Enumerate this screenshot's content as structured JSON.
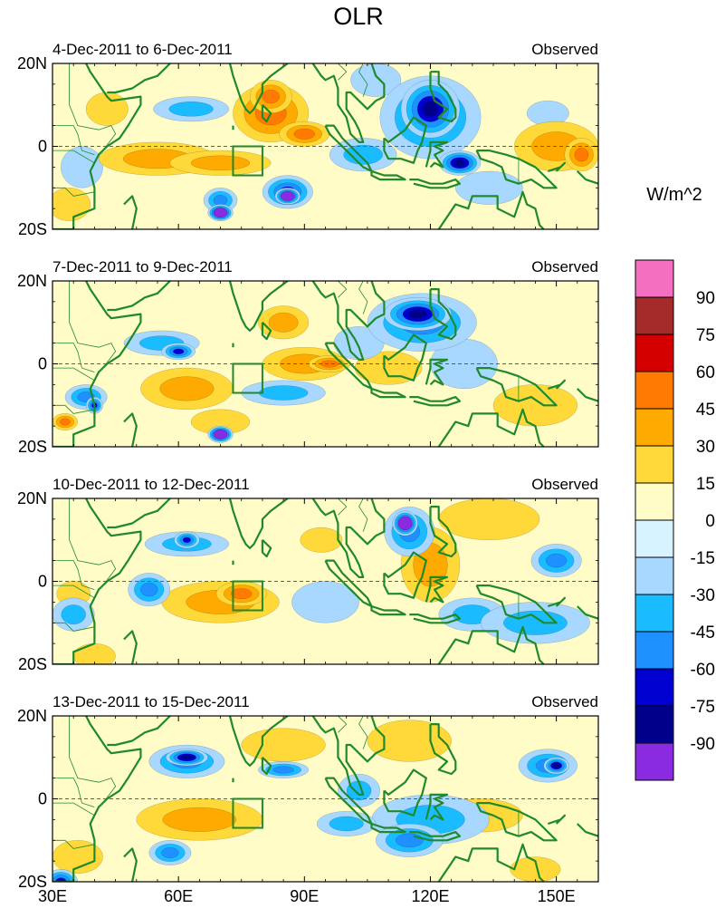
{
  "chart_data": {
    "type": "heatmap",
    "title": "OLR",
    "units_label": "W/m^2",
    "x_ticks": [
      "30E",
      "60E",
      "90E",
      "120E",
      "150E"
    ],
    "x_tick_values": [
      30,
      60,
      90,
      120,
      150
    ],
    "y_ticks": [
      "20N",
      "0",
      "20S"
    ],
    "y_tick_values": [
      20,
      0,
      -20
    ],
    "lon_range": [
      30,
      160
    ],
    "lat_range": [
      -20,
      20
    ],
    "box_region": {
      "lon": [
        73,
        80
      ],
      "lat": [
        -7,
        0
      ]
    },
    "colorbar": {
      "labels": [
        "90",
        "75",
        "60",
        "45",
        "30",
        "15",
        "0",
        "-15",
        "-30",
        "-45",
        "-60",
        "-75",
        "-90"
      ],
      "colors": [
        "#f46fc0",
        "#a52a2a",
        "#d40000",
        "#ff7a00",
        "#ffaa00",
        "#ffd93a",
        "#fffcc8",
        "#d6f3ff",
        "#a8d8ff",
        "#1bbcff",
        "#1e90ff",
        "#0000d0",
        "#00008b",
        "#8a2be2"
      ]
    },
    "panels": [
      {
        "period": "4-Dec-2011 to 6-Dec-2011",
        "label": "Observed",
        "features": [
          {
            "lon": 55,
            "lat": -3,
            "rx": 14,
            "ry": 4,
            "v": 30
          },
          {
            "lon": 70,
            "lat": -4,
            "rx": 12,
            "ry": 3,
            "v": 40
          },
          {
            "lon": 82,
            "lat": 8,
            "rx": 9,
            "ry": 7,
            "v": 45
          },
          {
            "lon": 82,
            "lat": 12,
            "rx": 5,
            "ry": 4,
            "v": 52
          },
          {
            "lon": 90,
            "lat": 3,
            "rx": 6,
            "ry": 3,
            "v": 45
          },
          {
            "lon": 150,
            "lat": 0,
            "rx": 10,
            "ry": 6,
            "v": 35
          },
          {
            "lon": 156,
            "lat": -2,
            "rx": 4,
            "ry": 4,
            "v": 50
          },
          {
            "lon": 43,
            "lat": 9,
            "rx": 5,
            "ry": 4,
            "v": 25
          },
          {
            "lon": 34,
            "lat": -14,
            "rx": 5,
            "ry": 4,
            "v": 20
          },
          {
            "lon": 63,
            "lat": 9,
            "rx": 9,
            "ry": 3,
            "v": -30
          },
          {
            "lon": 70,
            "lat": -13,
            "rx": 4,
            "ry": 3,
            "v": -45
          },
          {
            "lon": 70,
            "lat": -16,
            "rx": 3,
            "ry": 2,
            "v": -92
          },
          {
            "lon": 86,
            "lat": -11,
            "rx": 6,
            "ry": 4,
            "v": -60
          },
          {
            "lon": 86,
            "lat": -12,
            "rx": 3,
            "ry": 2,
            "v": -92
          },
          {
            "lon": 120,
            "lat": 7,
            "rx": 12,
            "ry": 10,
            "v": -55
          },
          {
            "lon": 120,
            "lat": 9,
            "rx": 7,
            "ry": 7,
            "v": -78
          },
          {
            "lon": 127,
            "lat": -4,
            "rx": 5,
            "ry": 3,
            "v": -80
          },
          {
            "lon": 104,
            "lat": -2,
            "rx": 8,
            "ry": 4,
            "v": -32
          },
          {
            "lon": 134,
            "lat": -10,
            "rx": 8,
            "ry": 4,
            "v": -25
          },
          {
            "lon": 148,
            "lat": 8,
            "rx": 5,
            "ry": 3,
            "v": -28
          },
          {
            "lon": 107,
            "lat": 16,
            "rx": 6,
            "ry": 4,
            "v": -20
          },
          {
            "lon": 37,
            "lat": -5,
            "rx": 5,
            "ry": 5,
            "v": -25
          }
        ]
      },
      {
        "period": "7-Dec-2011 to 9-Dec-2011",
        "label": "Observed",
        "features": [
          {
            "lon": 62,
            "lat": -6,
            "rx": 11,
            "ry": 5,
            "v": 30
          },
          {
            "lon": 85,
            "lat": 10,
            "rx": 6,
            "ry": 4,
            "v": 30
          },
          {
            "lon": 90,
            "lat": 0,
            "rx": 10,
            "ry": 4,
            "v": 40
          },
          {
            "lon": 96,
            "lat": 0,
            "rx": 5,
            "ry": 2,
            "v": 50
          },
          {
            "lon": 110,
            "lat": -1,
            "rx": 8,
            "ry": 4,
            "v": 25
          },
          {
            "lon": 70,
            "lat": -14,
            "rx": 7,
            "ry": 3,
            "v": 22
          },
          {
            "lon": 33,
            "lat": -14,
            "rx": 3,
            "ry": 2,
            "v": 55
          },
          {
            "lon": 145,
            "lat": -10,
            "rx": 10,
            "ry": 5,
            "v": 25
          },
          {
            "lon": 118,
            "lat": 10,
            "rx": 13,
            "ry": 7,
            "v": -50
          },
          {
            "lon": 117,
            "lat": 12,
            "rx": 8,
            "ry": 4,
            "v": -75
          },
          {
            "lon": 56,
            "lat": 5,
            "rx": 9,
            "ry": 3,
            "v": -40
          },
          {
            "lon": 60,
            "lat": 3,
            "rx": 4,
            "ry": 2,
            "v": -62
          },
          {
            "lon": 38,
            "lat": -8,
            "rx": 5,
            "ry": 3,
            "v": -45
          },
          {
            "lon": 40,
            "lat": -10,
            "rx": 2,
            "ry": 2,
            "v": -62
          },
          {
            "lon": 85,
            "lat": -7,
            "rx": 10,
            "ry": 3,
            "v": -40
          },
          {
            "lon": 70,
            "lat": -17,
            "rx": 3,
            "ry": 2,
            "v": -92
          },
          {
            "lon": 103,
            "lat": 5,
            "rx": 6,
            "ry": 4,
            "v": -25
          },
          {
            "lon": 128,
            "lat": 0,
            "rx": 8,
            "ry": 6,
            "v": -20
          }
        ]
      },
      {
        "period": "10-Dec-2011 to 12-Dec-2011",
        "label": "Observed",
        "features": [
          {
            "lon": 70,
            "lat": -5,
            "rx": 14,
            "ry": 5,
            "v": 35
          },
          {
            "lon": 75,
            "lat": -3,
            "rx": 6,
            "ry": 3,
            "v": 45
          },
          {
            "lon": 120,
            "lat": 4,
            "rx": 7,
            "ry": 9,
            "v": 30
          },
          {
            "lon": 134,
            "lat": 15,
            "rx": 12,
            "ry": 5,
            "v": 22
          },
          {
            "lon": 35,
            "lat": -3,
            "rx": 4,
            "ry": 3,
            "v": 25
          },
          {
            "lon": 40,
            "lat": -18,
            "rx": 5,
            "ry": 3,
            "v": 25
          },
          {
            "lon": 94,
            "lat": 10,
            "rx": 5,
            "ry": 3,
            "v": 25
          },
          {
            "lon": 115,
            "lat": 12,
            "rx": 6,
            "ry": 6,
            "v": -55
          },
          {
            "lon": 114,
            "lat": 14,
            "rx": 3,
            "ry": 3,
            "v": -92
          },
          {
            "lon": 62,
            "lat": 9,
            "rx": 10,
            "ry": 3,
            "v": -40
          },
          {
            "lon": 62,
            "lat": 10,
            "rx": 3,
            "ry": 2,
            "v": -62
          },
          {
            "lon": 53,
            "lat": -2,
            "rx": 5,
            "ry": 4,
            "v": -45
          },
          {
            "lon": 145,
            "lat": -10,
            "rx": 13,
            "ry": 5,
            "v": -40
          },
          {
            "lon": 150,
            "lat": 5,
            "rx": 6,
            "ry": 4,
            "v": -50
          },
          {
            "lon": 95,
            "lat": -5,
            "rx": 8,
            "ry": 5,
            "v": -25
          },
          {
            "lon": 35,
            "lat": -8,
            "rx": 5,
            "ry": 4,
            "v": -30
          },
          {
            "lon": 130,
            "lat": -8,
            "rx": 8,
            "ry": 4,
            "v": -30
          }
        ]
      },
      {
        "period": "13-Dec-2011 to 15-Dec-2011",
        "label": "Observed",
        "features": [
          {
            "lon": 65,
            "lat": -5,
            "rx": 15,
            "ry": 5,
            "v": 30
          },
          {
            "lon": 85,
            "lat": 13,
            "rx": 10,
            "ry": 4,
            "v": 25
          },
          {
            "lon": 132,
            "lat": -4,
            "rx": 10,
            "ry": 4,
            "v": 22
          },
          {
            "lon": 115,
            "lat": 14,
            "rx": 10,
            "ry": 5,
            "v": 20
          },
          {
            "lon": 145,
            "lat": -17,
            "rx": 6,
            "ry": 3,
            "v": 25
          },
          {
            "lon": 36,
            "lat": -14,
            "rx": 6,
            "ry": 4,
            "v": 25
          },
          {
            "lon": 62,
            "lat": 9,
            "rx": 9,
            "ry": 4,
            "v": -55
          },
          {
            "lon": 62,
            "lat": 10,
            "rx": 5,
            "ry": 2,
            "v": -75
          },
          {
            "lon": 120,
            "lat": -5,
            "rx": 14,
            "ry": 6,
            "v": -35
          },
          {
            "lon": 115,
            "lat": -10,
            "rx": 8,
            "ry": 4,
            "v": -50
          },
          {
            "lon": 100,
            "lat": -6,
            "rx": 7,
            "ry": 3,
            "v": -40
          },
          {
            "lon": 148,
            "lat": 8,
            "rx": 7,
            "ry": 4,
            "v": -55
          },
          {
            "lon": 150,
            "lat": 8,
            "rx": 3,
            "ry": 2,
            "v": -75
          },
          {
            "lon": 85,
            "lat": 7,
            "rx": 6,
            "ry": 2,
            "v": -45
          },
          {
            "lon": 32,
            "lat": -20,
            "rx": 4,
            "ry": 3,
            "v": -62
          },
          {
            "lon": 58,
            "lat": -13,
            "rx": 5,
            "ry": 3,
            "v": -45
          },
          {
            "lon": 103,
            "lat": 2,
            "rx": 5,
            "ry": 4,
            "v": -30
          }
        ]
      }
    ]
  },
  "colors": {
    "coast": "#1f8a2a",
    "equator": "#1f8a2a",
    "box": "#1f8a2a"
  }
}
